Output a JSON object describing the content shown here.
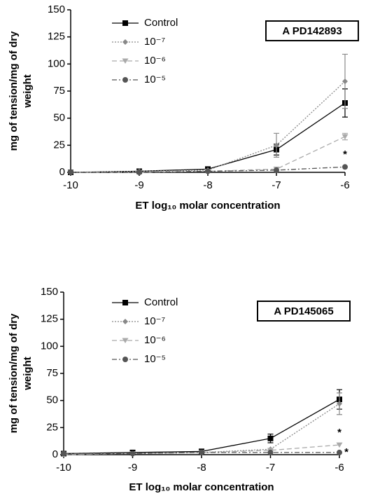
{
  "chart_data": [
    {
      "type": "line",
      "title": "A PD142893",
      "ylabel": [
        "mg of tension/mg of dry",
        "weight"
      ],
      "xlabel": "ET log₁₀ molar concentration",
      "x": [
        -10,
        -9,
        -8,
        -7,
        -6
      ],
      "xlim": [
        -10,
        -6
      ],
      "xticks": [
        -10,
        -9,
        -8,
        -7,
        -6
      ],
      "ylim": [
        0,
        150
      ],
      "yticks": [
        0,
        25,
        50,
        75,
        100,
        125,
        150
      ],
      "series": [
        {
          "name": "Control",
          "color": "#000000",
          "marker": "square",
          "linestyle": "solid",
          "values": [
            0,
            1,
            3,
            21,
            64
          ],
          "errors": [
            null,
            null,
            null,
            5,
            13
          ]
        },
        {
          "name": "10⁻⁷",
          "color": "#888888",
          "marker": "diamond",
          "linestyle": "dotted",
          "values": [
            0,
            1,
            2,
            25,
            84
          ],
          "errors": [
            null,
            null,
            null,
            11,
            25
          ]
        },
        {
          "name": "10⁻⁶",
          "color": "#aaaaaa",
          "marker": "triangle",
          "linestyle": "dashed",
          "values": [
            0,
            0,
            1,
            3,
            33
          ],
          "errors": [
            null,
            null,
            null,
            null,
            3
          ]
        },
        {
          "name": "10⁻⁵",
          "color": "#555555",
          "marker": "circle",
          "linestyle": "dashdot",
          "values": [
            0,
            0,
            1,
            2,
            5
          ],
          "errors": [
            null,
            null,
            null,
            null,
            null
          ],
          "significance": "*"
        }
      ]
    },
    {
      "type": "line",
      "title": "A PD145065",
      "ylabel": [
        "mg of tension/mg of dry",
        "weight"
      ],
      "xlabel": "ET log₁₀ molar concentration",
      "x": [
        -10,
        -9,
        -8,
        -7,
        -6
      ],
      "xlim": [
        -10,
        -6
      ],
      "xticks": [
        -10,
        -9,
        -8,
        -7,
        -6
      ],
      "ylim": [
        0,
        150
      ],
      "yticks": [
        0,
        25,
        50,
        75,
        100,
        125,
        150
      ],
      "series": [
        {
          "name": "Control",
          "color": "#000000",
          "marker": "square",
          "linestyle": "solid",
          "values": [
            1,
            2,
            3,
            15,
            51
          ],
          "errors": [
            null,
            null,
            null,
            4,
            9
          ]
        },
        {
          "name": "10⁻⁷",
          "color": "#888888",
          "marker": "diamond",
          "linestyle": "dotted",
          "values": [
            0,
            1,
            2,
            5,
            47
          ],
          "errors": [
            null,
            null,
            null,
            null,
            10
          ]
        },
        {
          "name": "10⁻⁶",
          "color": "#aaaaaa",
          "marker": "triangle",
          "linestyle": "dashed",
          "values": [
            0,
            1,
            2,
            4,
            9
          ],
          "errors": [
            null,
            null,
            null,
            null,
            null
          ],
          "significance": "*"
        },
        {
          "name": "10⁻⁵",
          "color": "#555555",
          "marker": "circle",
          "linestyle": "dashdot",
          "values": [
            1,
            1,
            2,
            2,
            2
          ],
          "errors": [
            null,
            null,
            null,
            null,
            null
          ],
          "significance": "*"
        }
      ]
    }
  ]
}
